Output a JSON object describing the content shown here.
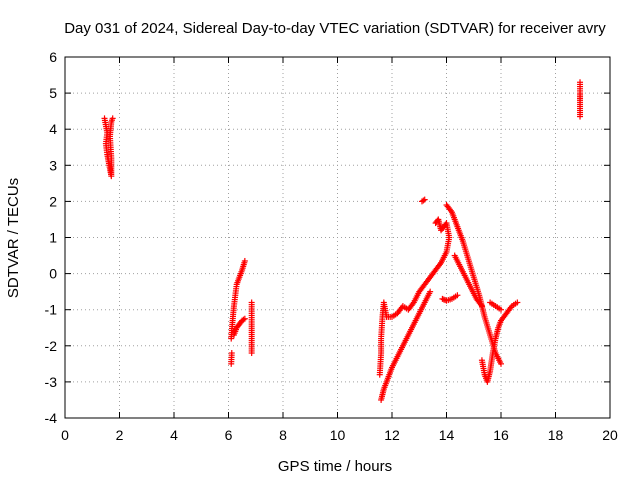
{
  "chart_data": {
    "type": "scatter",
    "title": "Day 031 of 2024, Sidereal Day-to-day VTEC variation (SDTVAR) for receiver avry",
    "xlabel": "GPS time / hours",
    "ylabel": "SDTVAR / TECUs",
    "xlim": [
      0,
      20
    ],
    "ylim": [
      -4,
      6
    ],
    "xticks": [
      0,
      2,
      4,
      6,
      8,
      10,
      12,
      14,
      16,
      18,
      20
    ],
    "yticks": [
      -4,
      -3,
      -2,
      -1,
      0,
      1,
      2,
      3,
      4,
      5,
      6
    ],
    "grid": true,
    "marker": "+",
    "color": "#ff0000",
    "segments": [
      [
        [
          1.45,
          4.3
        ],
        [
          1.55,
          3.9
        ],
        [
          1.5,
          3.6
        ],
        [
          1.55,
          3.3
        ],
        [
          1.6,
          3.1
        ],
        [
          1.65,
          2.9
        ],
        [
          1.7,
          2.7
        ],
        [
          1.7,
          3.2
        ],
        [
          1.65,
          3.8
        ],
        [
          1.7,
          4.2
        ],
        [
          1.75,
          4.3
        ]
      ],
      [
        [
          6.1,
          -1.8
        ],
        [
          6.15,
          -1.3
        ],
        [
          6.2,
          -0.9
        ],
        [
          6.25,
          -0.6
        ],
        [
          6.3,
          -0.3
        ],
        [
          6.4,
          -0.1
        ],
        [
          6.5,
          0.1
        ],
        [
          6.6,
          0.35
        ]
      ],
      [
        [
          6.1,
          -2.5
        ],
        [
          6.12,
          -2.2
        ]
      ],
      [
        [
          6.2,
          -1.7
        ],
        [
          6.3,
          -1.5
        ],
        [
          6.4,
          -1.4
        ],
        [
          6.5,
          -1.3
        ],
        [
          6.6,
          -1.25
        ]
      ],
      [
        [
          6.85,
          -0.8
        ],
        [
          6.85,
          -1.4
        ],
        [
          6.85,
          -2.2
        ]
      ],
      [
        [
          11.6,
          -3.5
        ],
        [
          11.7,
          -3.2
        ],
        [
          11.8,
          -3.0
        ],
        [
          11.9,
          -2.8
        ],
        [
          12.0,
          -2.6
        ],
        [
          12.2,
          -2.3
        ],
        [
          12.4,
          -2.0
        ],
        [
          12.6,
          -1.7
        ],
        [
          12.8,
          -1.4
        ],
        [
          13.0,
          -1.1
        ],
        [
          13.2,
          -0.8
        ],
        [
          13.4,
          -0.5
        ]
      ],
      [
        [
          11.55,
          -2.8
        ],
        [
          11.6,
          -2.2
        ],
        [
          11.6,
          -1.8
        ],
        [
          11.65,
          -1.2
        ],
        [
          11.7,
          -0.8
        ],
        [
          11.8,
          -1.2
        ],
        [
          12.0,
          -1.2
        ],
        [
          12.2,
          -1.1
        ],
        [
          12.4,
          -0.9
        ],
        [
          12.6,
          -1.0
        ],
        [
          12.8,
          -0.8
        ],
        [
          13.0,
          -0.5
        ],
        [
          13.2,
          -0.3
        ],
        [
          13.4,
          -0.1
        ],
        [
          13.6,
          0.1
        ],
        [
          13.8,
          0.3
        ],
        [
          14.0,
          0.6
        ],
        [
          14.1,
          1.0
        ],
        [
          14.0,
          1.4
        ],
        [
          13.8,
          1.2
        ],
        [
          13.7,
          1.5
        ],
        [
          13.6,
          1.4
        ]
      ],
      [
        [
          13.1,
          2.0
        ],
        [
          13.2,
          2.05
        ]
      ],
      [
        [
          14.0,
          1.9
        ],
        [
          14.2,
          1.7
        ],
        [
          14.4,
          1.3
        ],
        [
          14.6,
          0.9
        ],
        [
          14.8,
          0.4
        ],
        [
          15.0,
          -0.1
        ],
        [
          15.2,
          -0.6
        ],
        [
          15.4,
          -1.2
        ],
        [
          15.6,
          -1.7
        ],
        [
          15.8,
          -2.2
        ],
        [
          16.0,
          -2.5
        ]
      ],
      [
        [
          14.3,
          0.5
        ],
        [
          14.5,
          0.2
        ],
        [
          14.7,
          -0.1
        ],
        [
          14.9,
          -0.4
        ],
        [
          15.1,
          -0.7
        ],
        [
          15.3,
          -0.9
        ]
      ],
      [
        [
          15.3,
          -2.4
        ],
        [
          15.4,
          -2.8
        ],
        [
          15.5,
          -3.0
        ],
        [
          15.6,
          -2.7
        ],
        [
          15.7,
          -2.2
        ],
        [
          15.8,
          -1.8
        ],
        [
          15.9,
          -1.5
        ],
        [
          16.0,
          -1.3
        ],
        [
          16.2,
          -1.1
        ],
        [
          16.4,
          -0.9
        ],
        [
          16.6,
          -0.8
        ]
      ],
      [
        [
          13.85,
          -0.7
        ],
        [
          14.0,
          -0.75
        ],
        [
          14.2,
          -0.7
        ],
        [
          14.4,
          -0.6
        ]
      ],
      [
        [
          15.6,
          -0.8
        ],
        [
          15.8,
          -0.9
        ],
        [
          16.0,
          -1.0
        ]
      ],
      [
        [
          18.9,
          5.3
        ],
        [
          18.9,
          5.0
        ],
        [
          18.9,
          4.8
        ],
        [
          18.9,
          4.35
        ]
      ]
    ]
  }
}
